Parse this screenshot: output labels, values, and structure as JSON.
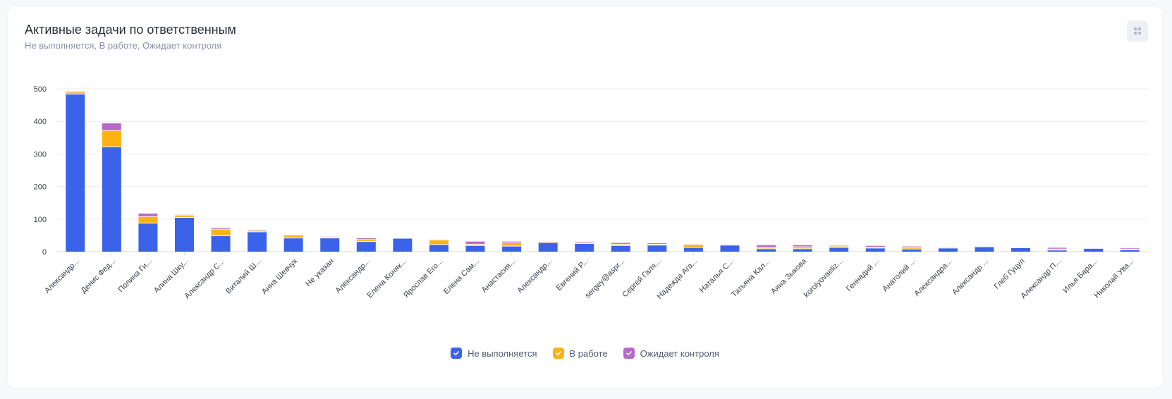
{
  "header": {
    "title": "Активные задачи по ответственным",
    "subtitle": "Не выполняется, В работе, Ожидает контроля"
  },
  "toolbar": {
    "menu_icon": "grid-dots-icon"
  },
  "legend": {
    "items": [
      {
        "label": "Не выполняется",
        "color": "#3a63ea",
        "icon": "check-icon"
      },
      {
        "label": "В работе",
        "color": "#fbb213",
        "icon": "check-icon"
      },
      {
        "label": "Ожидает контроля",
        "color": "#b768c9",
        "icon": "check-icon"
      }
    ]
  },
  "chart_data": {
    "type": "bar",
    "stacked": true,
    "ylim": [
      0,
      500
    ],
    "yticks": [
      0,
      100,
      200,
      300,
      400,
      500
    ],
    "grid": true,
    "legend_position": "bottom",
    "categories": [
      "Александр...",
      "Денис Фед...",
      "Полина Ги...",
      "Алина Шку...",
      "Александр С...",
      "Виталий Ш...",
      "Анна Шевчук",
      "Не указан",
      "Александр...",
      "Елена Коняк...",
      "Ярослав Его...",
      "Елена Сам...",
      "Анастасия...",
      "Александр...",
      "Евгений Р...",
      "sergey@aspr...",
      "Сергей Галя...",
      "Надежда Ага...",
      "Наталья С...",
      "Татьяна Кал...",
      "Аяна Зыкова",
      "korolyovaeliz...",
      "Геннадий ...",
      "Анатолий ...",
      "Александра...",
      "Александр ...",
      "Глеб Гуцул",
      "Александр П...",
      "Илья Бара...",
      "Николай Ува..."
    ],
    "series": [
      {
        "name": "Не выполняется",
        "color": "#3a63ea",
        "values": [
          484,
          322,
          88,
          105,
          49,
          61,
          42,
          42,
          31,
          40,
          22,
          19,
          17,
          28,
          25,
          19,
          20,
          13,
          20,
          9,
          9,
          13,
          11,
          8,
          11,
          14,
          12,
          5,
          10,
          6
        ]
      },
      {
        "name": "В работе",
        "color": "#fbb213",
        "values": [
          6,
          50,
          20,
          6,
          20,
          4,
          8,
          3,
          6,
          0,
          14,
          4,
          10,
          3,
          2,
          4,
          3,
          9,
          2,
          4,
          6,
          4,
          3,
          5,
          3,
          0,
          1,
          3,
          0,
          2
        ]
      },
      {
        "name": "Ожидает контроля",
        "color": "#b768c9",
        "values": [
          2,
          22,
          9,
          2,
          4,
          2,
          2,
          1,
          4,
          0,
          1,
          8,
          4,
          1,
          3,
          4,
          3,
          1,
          1,
          7,
          5,
          2,
          4,
          3,
          1,
          0,
          1,
          4,
          1,
          3
        ]
      }
    ]
  }
}
